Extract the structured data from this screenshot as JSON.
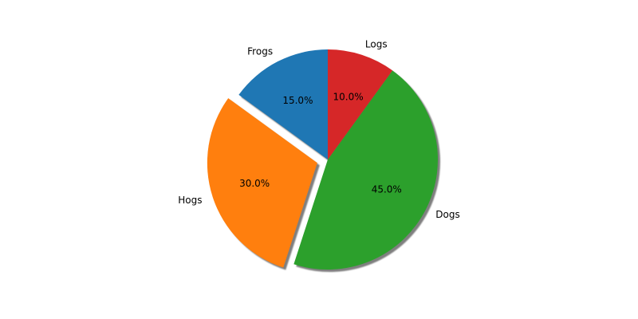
{
  "chart_data": {
    "type": "pie",
    "title": "",
    "start_angle_deg": 90,
    "direction": "counterclockwise",
    "shadow": true,
    "slices": [
      {
        "label": "Frogs",
        "value": 15,
        "percent_label": "15.0%",
        "color": "#1f77b4",
        "explode": 0
      },
      {
        "label": "Hogs",
        "value": 30,
        "percent_label": "30.0%",
        "color": "#ff7f0e",
        "explode": 0.1
      },
      {
        "label": "Dogs",
        "value": 45,
        "percent_label": "45.0%",
        "color": "#2ca02c",
        "explode": 0
      },
      {
        "label": "Logs",
        "value": 10,
        "percent_label": "10.0%",
        "color": "#d62728",
        "explode": 0
      }
    ]
  }
}
